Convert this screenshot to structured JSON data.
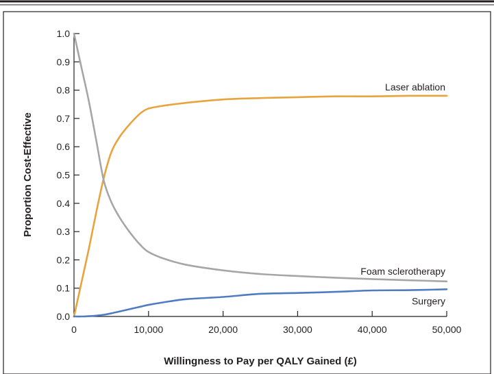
{
  "chart_data": {
    "type": "line",
    "title": "",
    "xlabel": "Willingness to Pay per QALY Gained (£)",
    "ylabel": "Proportion Cost-Effective",
    "xlim": [
      0,
      50000
    ],
    "ylim": [
      0,
      1.0
    ],
    "x_ticks": [
      0,
      10000,
      20000,
      30000,
      40000,
      50000
    ],
    "x_tick_labels": [
      "0",
      "10,000",
      "20,000",
      "30,000",
      "40,000",
      "50,000"
    ],
    "y_ticks": [
      0,
      0.1,
      0.2,
      0.3,
      0.4,
      0.5,
      0.6,
      0.7,
      0.8,
      0.9,
      1.0
    ],
    "y_tick_labels": [
      "0.0",
      "0.1",
      "0.2",
      "0.3",
      "0.4",
      "0.5",
      "0.6",
      "0.7",
      "0.8",
      "0.9",
      "1.0"
    ],
    "grid": false,
    "legend": "inline labels at right end of lines",
    "series": [
      {
        "name": "Laser ablation",
        "color": "#e8a33c",
        "x": [
          0,
          1000,
          2000,
          3000,
          4000,
          5000,
          6000,
          7000,
          8000,
          9000,
          10000,
          12000,
          15000,
          20000,
          25000,
          30000,
          35000,
          40000,
          45000,
          50000
        ],
        "y": [
          0.0,
          0.12,
          0.24,
          0.37,
          0.49,
          0.58,
          0.63,
          0.665,
          0.695,
          0.72,
          0.735,
          0.745,
          0.755,
          0.767,
          0.772,
          0.775,
          0.778,
          0.778,
          0.78,
          0.78
        ]
      },
      {
        "name": "Foam sclerotherapy",
        "color": "#a6a6a6",
        "x": [
          0,
          1000,
          2000,
          3000,
          4000,
          5000,
          6000,
          7000,
          8000,
          9000,
          10000,
          12000,
          15000,
          20000,
          25000,
          30000,
          35000,
          40000,
          45000,
          50000
        ],
        "y": [
          1.0,
          0.88,
          0.76,
          0.62,
          0.48,
          0.405,
          0.355,
          0.315,
          0.28,
          0.25,
          0.228,
          0.205,
          0.183,
          0.163,
          0.15,
          0.143,
          0.137,
          0.132,
          0.128,
          0.124
        ]
      },
      {
        "name": "Surgery",
        "color": "#4f7bc1",
        "x": [
          0,
          1000,
          2000,
          3000,
          4000,
          5000,
          6000,
          7000,
          8000,
          9000,
          10000,
          12000,
          15000,
          20000,
          25000,
          30000,
          35000,
          40000,
          45000,
          50000
        ],
        "y": [
          0.0,
          0.0,
          0.001,
          0.003,
          0.006,
          0.011,
          0.017,
          0.023,
          0.029,
          0.035,
          0.041,
          0.05,
          0.061,
          0.069,
          0.08,
          0.083,
          0.087,
          0.092,
          0.093,
          0.096
        ]
      }
    ]
  }
}
